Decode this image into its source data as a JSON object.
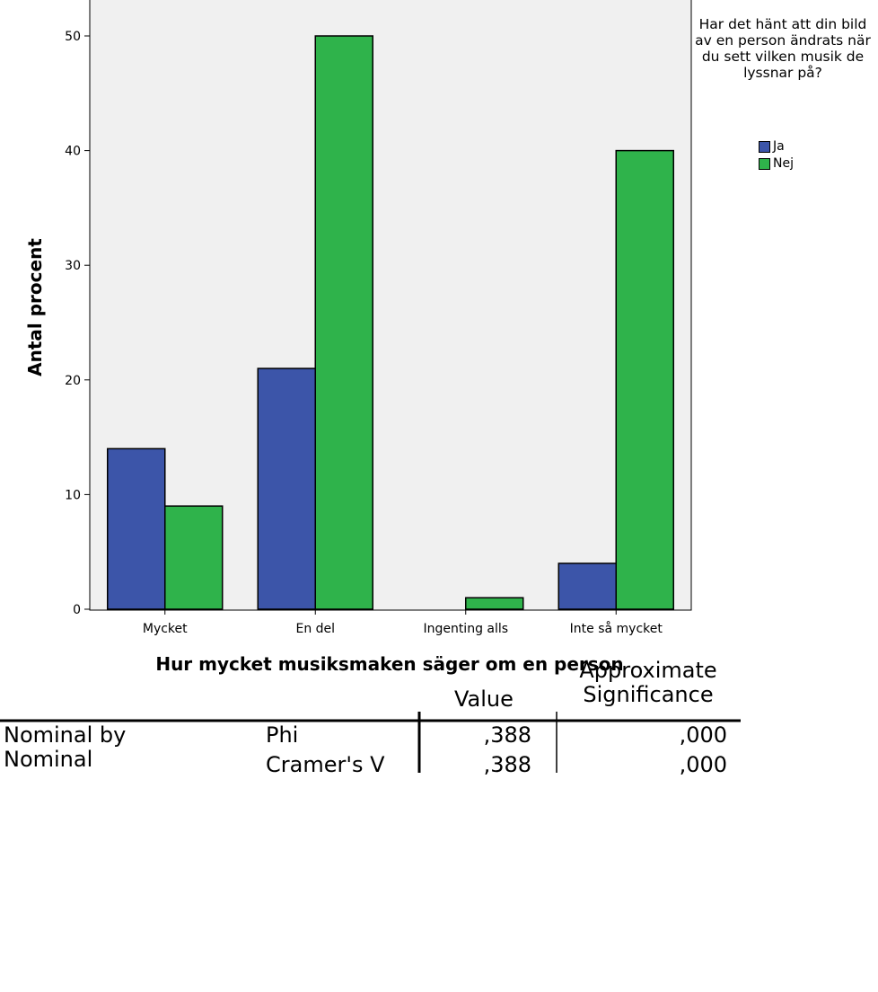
{
  "chart_data": {
    "type": "bar",
    "title": "",
    "xlabel": "Hur mycket musiksmaken säger om en person",
    "ylabel": "Antal procent",
    "categories": [
      "Mycket",
      "En del",
      "Ingenting alls",
      "Inte så mycket"
    ],
    "series": [
      {
        "name": "Ja",
        "values": [
          14,
          21,
          0,
          4
        ],
        "color": "#3c55a9"
      },
      {
        "name": "Nej",
        "values": [
          9,
          50,
          1,
          40
        ],
        "color": "#2fb34b"
      }
    ],
    "ylim": [
      0,
      52
    ],
    "yticks": [
      0,
      10,
      20,
      30,
      40,
      50
    ],
    "legend_title": "Har det hänt att din bild av en person ändrats när du sett vilken musik de lyssnar på?",
    "legend_position": "right",
    "plot_background": "#f0f0f0",
    "grid": false
  },
  "stats_table": {
    "header": {
      "value": "Value",
      "significance": "Approximate Significance"
    },
    "row_group": "Nominal by Nominal",
    "rows": [
      {
        "label": "Phi",
        "value": ",388",
        "significance": ",000"
      },
      {
        "label": "Cramer's V",
        "value": ",388",
        "significance": ",000"
      }
    ]
  }
}
